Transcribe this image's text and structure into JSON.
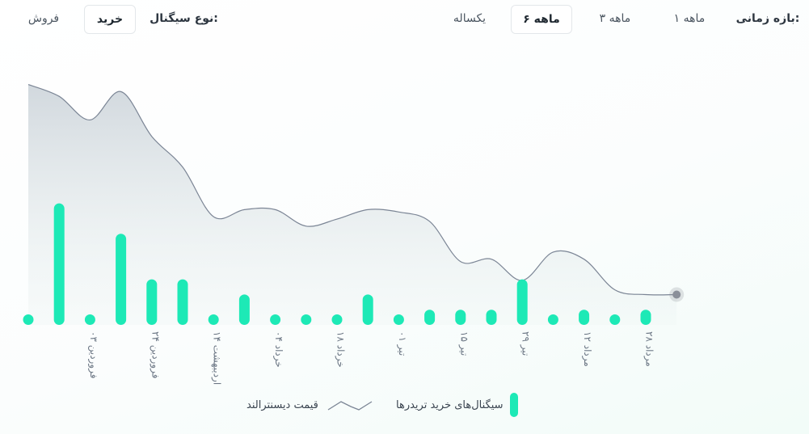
{
  "filters": {
    "period_label": "بازه زمانی:",
    "period_options": [
      "۱ ماهه",
      "۳ ماهه",
      "۶ ماهه",
      "یکساله"
    ],
    "period_selected": "۶ ماهه",
    "signal_label": "نوع سیگنال:",
    "signal_options": [
      "خرید",
      "فروش"
    ],
    "signal_selected": "خرید"
  },
  "legend": {
    "bars": "سیگنال‌های خرید تریدرها",
    "line": "قیمت دیسنترالند"
  },
  "colors": {
    "bar": "#1de9b6",
    "line": "#7b8595",
    "area_top": "#cfd6dc",
    "area_bottom": "#eef5f4",
    "end_marker": "#8a8f99"
  },
  "chart_data": {
    "type": "bar",
    "title": "",
    "xlabel": "",
    "ylabel": "",
    "x_tick_labels": [
      "۰۳ فروردین",
      "۲۴ فروردین",
      "۱۴ اردیبهشت",
      "۰۴ خرداد",
      "۱۸ خرداد",
      "۰۱ تیر",
      "۱۵ تیر",
      "۲۹ تیر",
      "۱۲ مرداد",
      "۲۸ مرداد"
    ],
    "series": [
      {
        "name": "سیگنال‌های خرید تریدرها",
        "type": "bar",
        "values": [
          0,
          8,
          0,
          6,
          3,
          3,
          0,
          2,
          0,
          0,
          0,
          2,
          0,
          1,
          1,
          1,
          3,
          0,
          1,
          0,
          1
        ]
      },
      {
        "name": "قیمت دیسنترالند",
        "type": "area",
        "values": [
          95,
          90,
          80,
          92,
          73,
          60,
          39,
          42,
          42,
          35,
          38,
          42,
          41,
          37,
          20,
          21,
          12,
          24,
          21,
          8,
          6,
          6
        ]
      }
    ]
  }
}
